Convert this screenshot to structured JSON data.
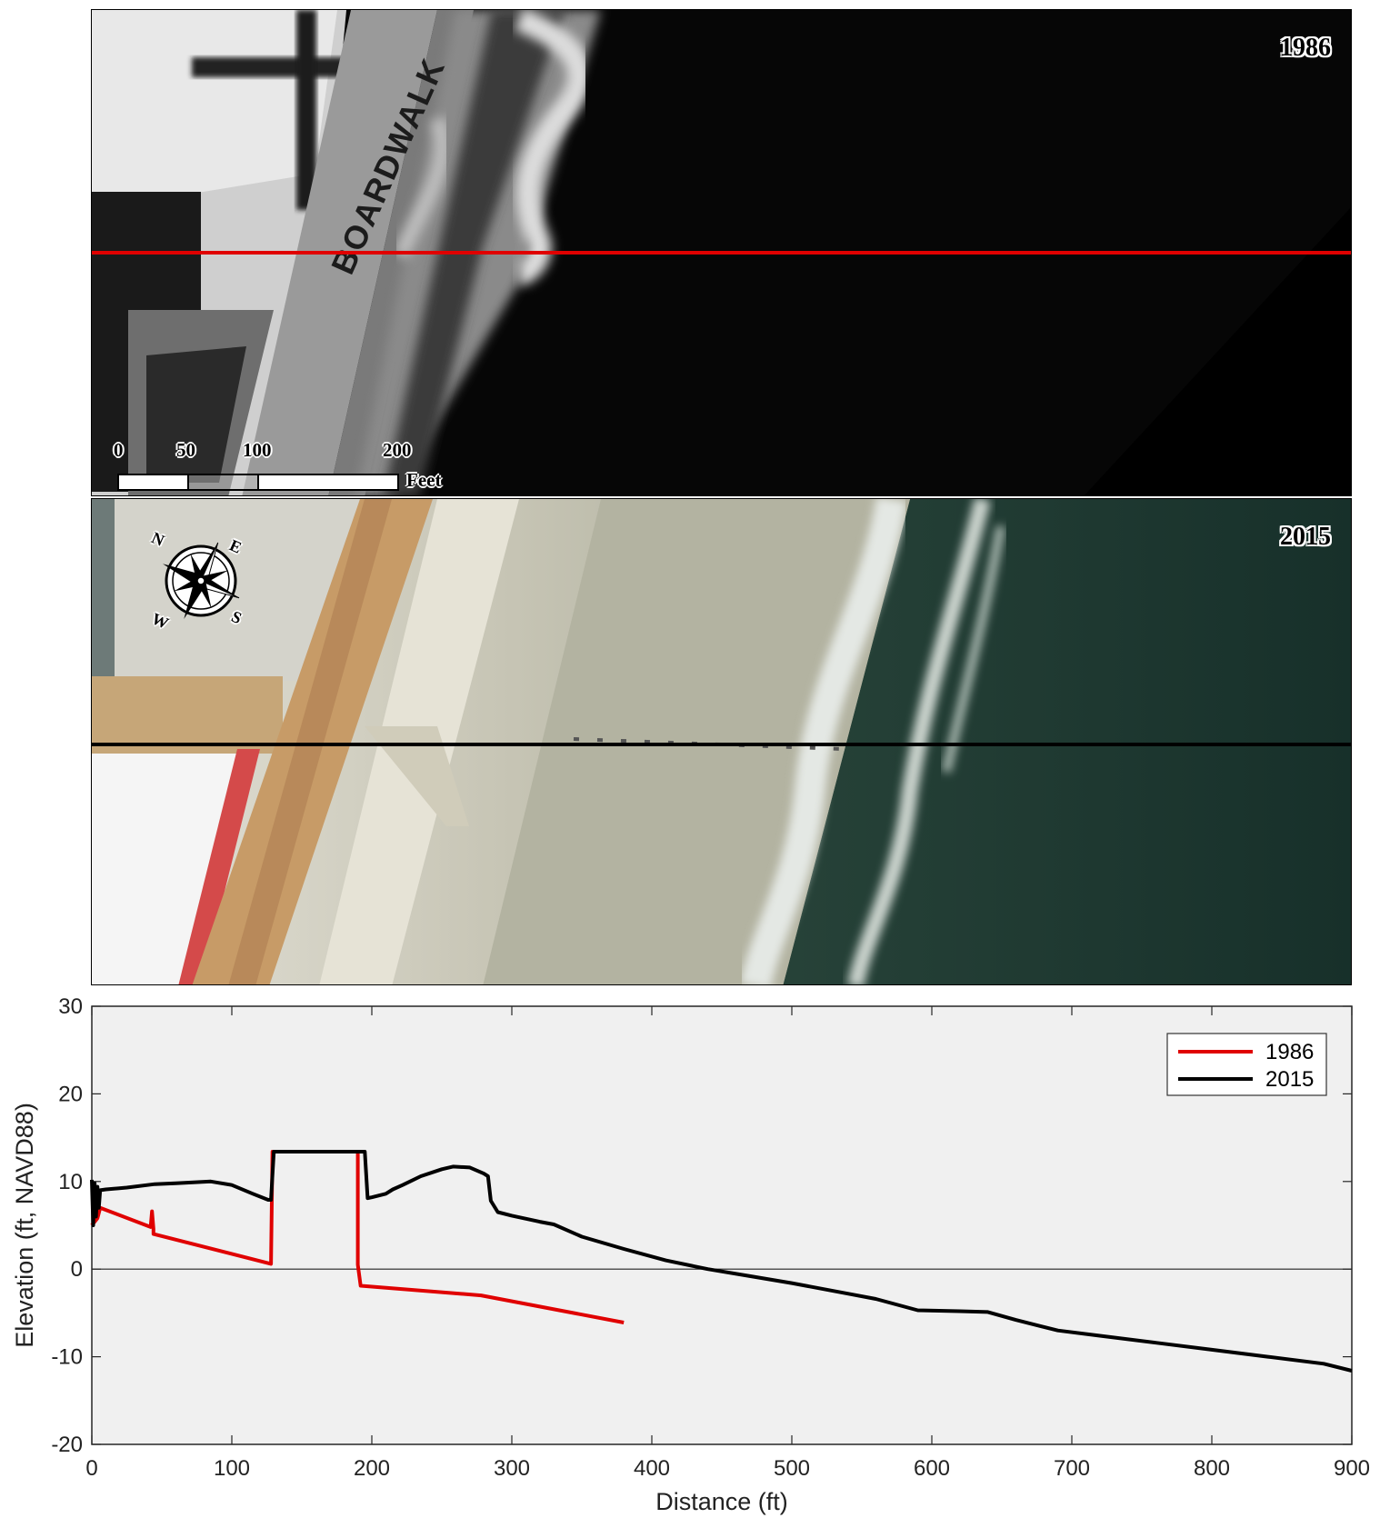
{
  "photos": {
    "top": {
      "year_label": "1986",
      "boardwalk_text": "BOARDWALK"
    },
    "bottom": {
      "year_label": "2015"
    },
    "scale_bar": {
      "ticks": [
        "0",
        "50",
        "100",
        "200"
      ],
      "unit": "Feet"
    },
    "compass": {
      "n": "N",
      "e": "E",
      "s": "S",
      "w": "W"
    },
    "colors": {
      "transect_1986": "#e00000",
      "transect_2015": "#000000"
    }
  },
  "chart_data": {
    "type": "line",
    "title": "",
    "xlabel": "Distance (ft)",
    "ylabel": "Elevation (ft, NAVD88)",
    "xlim": [
      0,
      900
    ],
    "ylim": [
      -20,
      30
    ],
    "xticks": [
      0,
      100,
      200,
      300,
      400,
      500,
      600,
      700,
      800,
      900
    ],
    "yticks": [
      -20,
      -10,
      0,
      10,
      20,
      30
    ],
    "grid": false,
    "zero_line": true,
    "legend": "top-right",
    "background": "#f0f0f0",
    "series": [
      {
        "name": "1986",
        "color": "#e00000",
        "x": [
          0,
          4,
          6,
          42,
          43,
          44,
          44,
          128,
          129,
          134,
          190,
          190,
          192,
          278,
          380
        ],
        "y": [
          5.0,
          5.8,
          7.0,
          4.8,
          6.6,
          4.6,
          4.0,
          0.6,
          13.4,
          13.4,
          13.4,
          0.5,
          -1.9,
          -3.0,
          -6.1
        ]
      },
      {
        "name": "2015",
        "color": "#000000",
        "x": [
          0,
          1,
          2,
          3,
          4,
          5,
          6,
          10,
          25,
          45,
          60,
          85,
          100,
          115,
          126,
          128,
          130,
          133,
          145,
          165,
          185,
          195,
          197,
          200,
          210,
          215,
          222,
          235,
          250,
          258,
          270,
          280,
          283,
          285,
          290,
          300,
          320,
          330,
          350,
          380,
          410,
          440,
          470,
          500,
          540,
          560,
          590,
          620,
          640,
          660,
          690,
          720,
          760,
          800,
          840,
          880,
          900
        ],
        "y": [
          10.2,
          5.0,
          9.8,
          6.0,
          9.4,
          7.0,
          9.0,
          9.1,
          9.3,
          9.7,
          9.8,
          10.0,
          9.6,
          8.6,
          7.9,
          7.9,
          13.4,
          13.4,
          13.4,
          13.4,
          13.4,
          13.4,
          8.1,
          8.2,
          8.6,
          9.1,
          9.6,
          10.6,
          11.4,
          11.7,
          11.6,
          10.9,
          10.6,
          7.8,
          6.5,
          6.1,
          5.4,
          5.1,
          3.7,
          2.3,
          1.0,
          0.0,
          -0.8,
          -1.6,
          -2.8,
          -3.4,
          -4.7,
          -4.8,
          -4.9,
          -5.8,
          -7.0,
          -7.6,
          -8.4,
          -9.2,
          -10.0,
          -10.8,
          -11.6
        ]
      }
    ]
  }
}
